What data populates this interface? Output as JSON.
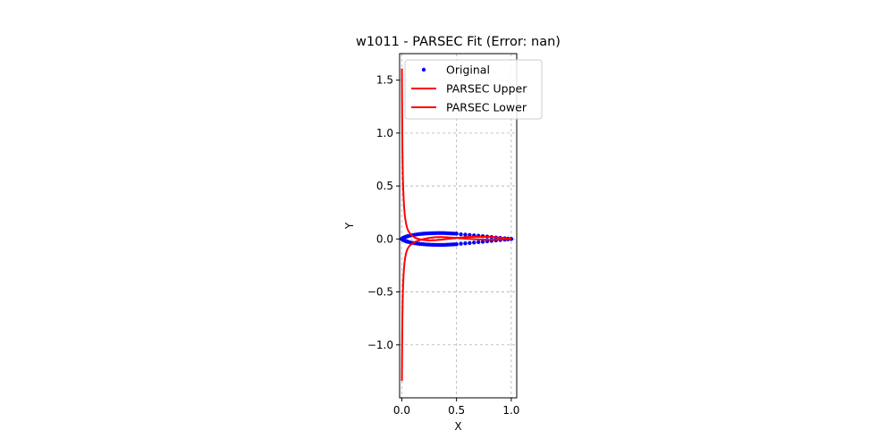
{
  "chart_data": {
    "type": "line",
    "title": "w1011 - PARSEC Fit (Error: nan)",
    "xlabel": "X",
    "ylabel": "Y",
    "xlim": [
      -0.02,
      1.05
    ],
    "ylim": [
      -1.5,
      1.75
    ],
    "xticks": [
      0.0,
      0.5,
      1.0
    ],
    "xtick_labels": [
      "0.0",
      "0.5",
      "1.0"
    ],
    "yticks": [
      -1.0,
      -0.5,
      0.0,
      0.5,
      1.0,
      1.5
    ],
    "ytick_labels": [
      "−1.0",
      "−0.5",
      "0.0",
      "0.5",
      "1.0",
      "1.5"
    ],
    "grid": true,
    "legend_position": "top-right",
    "series": [
      {
        "name": "Original",
        "kind": "scatter",
        "color": "#0000ff",
        "x": [
          1.0,
          0.97,
          0.94,
          0.9,
          0.86,
          0.82,
          0.78,
          0.74,
          0.7,
          0.66,
          0.62,
          0.58,
          0.54,
          0.5,
          0.48,
          0.46,
          0.44,
          0.42,
          0.4,
          0.38,
          0.36,
          0.34,
          0.32,
          0.3,
          0.28,
          0.26,
          0.24,
          0.22,
          0.2,
          0.18,
          0.16,
          0.14,
          0.12,
          0.1,
          0.08,
          0.06,
          0.05,
          0.04,
          0.03,
          0.02,
          0.01,
          0.005,
          0.0,
          0.005,
          0.01,
          0.02,
          0.03,
          0.04,
          0.05,
          0.06,
          0.08,
          0.1,
          0.12,
          0.14,
          0.16,
          0.18,
          0.2,
          0.22,
          0.24,
          0.26,
          0.28,
          0.3,
          0.32,
          0.34,
          0.36,
          0.38,
          0.4,
          0.42,
          0.44,
          0.46,
          0.48,
          0.5,
          0.54,
          0.58,
          0.62,
          0.66,
          0.7,
          0.74,
          0.78,
          0.82,
          0.86,
          0.9,
          0.94,
          0.97,
          1.0
        ],
        "y": [
          0.0,
          0.003,
          0.006,
          0.01,
          0.014,
          0.018,
          0.022,
          0.026,
          0.03,
          0.034,
          0.038,
          0.041,
          0.044,
          0.05,
          0.051,
          0.052,
          0.053,
          0.054,
          0.055,
          0.056,
          0.056,
          0.056,
          0.056,
          0.055,
          0.055,
          0.054,
          0.053,
          0.052,
          0.05,
          0.048,
          0.046,
          0.043,
          0.04,
          0.037,
          0.033,
          0.028,
          0.025,
          0.022,
          0.018,
          0.014,
          0.008,
          0.004,
          0.0,
          -0.004,
          -0.008,
          -0.014,
          -0.018,
          -0.022,
          -0.025,
          -0.028,
          -0.033,
          -0.037,
          -0.04,
          -0.043,
          -0.046,
          -0.048,
          -0.05,
          -0.052,
          -0.053,
          -0.054,
          -0.055,
          -0.055,
          -0.056,
          -0.056,
          -0.056,
          -0.056,
          -0.055,
          -0.054,
          -0.053,
          -0.052,
          -0.051,
          -0.05,
          -0.044,
          -0.041,
          -0.038,
          -0.034,
          -0.03,
          -0.026,
          -0.022,
          -0.018,
          -0.014,
          -0.01,
          -0.006,
          -0.003,
          0.0
        ]
      },
      {
        "name": "PARSEC Upper",
        "kind": "line",
        "color": "#ff0000",
        "x": [
          1.0,
          0.9,
          0.8,
          0.7,
          0.6,
          0.5,
          0.4,
          0.35,
          0.3,
          0.25,
          0.2,
          0.16,
          0.12,
          0.1,
          0.08,
          0.06,
          0.05,
          0.04,
          0.03,
          0.025,
          0.02,
          0.015,
          0.012,
          0.01,
          0.008,
          0.006,
          0.005,
          0.004,
          0.003,
          0.002,
          0.0015,
          0.001
        ],
        "y": [
          0.0,
          0.012,
          0.02,
          0.022,
          0.018,
          0.01,
          -0.002,
          -0.008,
          -0.012,
          -0.014,
          -0.01,
          -0.002,
          0.012,
          0.026,
          0.045,
          0.075,
          0.1,
          0.14,
          0.2,
          0.25,
          0.32,
          0.42,
          0.5,
          0.58,
          0.68,
          0.82,
          0.92,
          1.04,
          1.18,
          1.36,
          1.48,
          1.61
        ]
      },
      {
        "name": "PARSEC Lower",
        "kind": "line",
        "color": "#ff0000",
        "x": [
          1.0,
          0.9,
          0.8,
          0.7,
          0.6,
          0.5,
          0.4,
          0.35,
          0.3,
          0.25,
          0.2,
          0.16,
          0.12,
          0.1,
          0.08,
          0.06,
          0.05,
          0.04,
          0.03,
          0.025,
          0.02,
          0.015,
          0.012,
          0.01,
          0.008,
          0.006,
          0.005,
          0.004,
          0.003,
          0.002,
          0.0015,
          0.001
        ],
        "y": [
          0.0,
          -0.005,
          -0.008,
          -0.004,
          0.002,
          0.01,
          0.016,
          0.018,
          0.016,
          0.01,
          0.0,
          -0.012,
          -0.028,
          -0.04,
          -0.055,
          -0.08,
          -0.1,
          -0.13,
          -0.18,
          -0.22,
          -0.28,
          -0.36,
          -0.43,
          -0.5,
          -0.58,
          -0.7,
          -0.78,
          -0.88,
          -1.0,
          -1.15,
          -1.25,
          -1.34
        ]
      }
    ]
  }
}
